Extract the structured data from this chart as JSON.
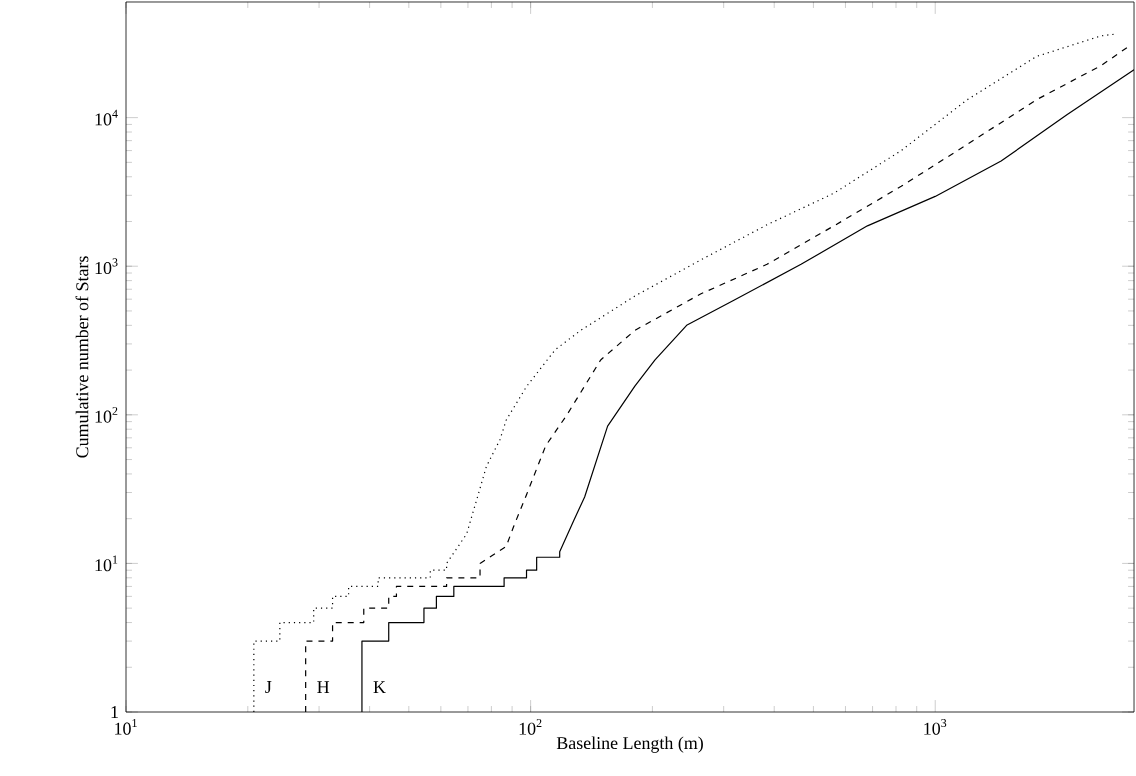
{
  "chart_data": {
    "type": "line",
    "xlabel": "Baseline Length (m)",
    "ylabel": "Cumulative number of Stars",
    "log": "xy",
    "grid": false,
    "marker": "none",
    "xlim": [
      10,
      3100
    ],
    "ylim": [
      1,
      60000
    ],
    "xticks": [
      {
        "value": 10,
        "label": "10$^{1}$"
      },
      {
        "value": 100,
        "label": "10$^{2}$"
      },
      {
        "value": 1000,
        "label": "10$^{3}$"
      }
    ],
    "yticks": [
      1,
      {
        "value": 10,
        "label": "10$^{1}$"
      },
      {
        "value": 100,
        "label": "10$^{2}$"
      },
      {
        "value": 1000,
        "label": "10$^{3}$"
      },
      {
        "value": 10000,
        "label": "10$^{4}$"
      }
    ],
    "series": [
      {
        "color": "#000000",
        "line_style": "dotted",
        "x": [
          20.7,
          20.7,
          24,
          24,
          29.1,
          29.1,
          32.4,
          32.4,
          35.5,
          35.5,
          42,
          42,
          56.5,
          56.5,
          62,
          62,
          69.5,
          77.8,
          84,
          87,
          97.7,
          115,
          133,
          181,
          263,
          384,
          562,
          824,
          1200,
          1780,
          2570,
          2790
        ],
        "values": [
          1,
          3,
          3,
          4,
          4,
          5,
          5,
          6,
          6,
          7,
          7,
          8,
          8,
          9,
          9,
          10,
          15.8,
          45,
          68,
          92,
          155,
          274,
          370,
          630,
          1100,
          1900,
          3100,
          6000,
          13200,
          25800,
          35500,
          36500
        ]
      },
      {
        "color": "#000000",
        "line_style": "dashed",
        "x": [
          27.8,
          27.8,
          32.4,
          32.4,
          38.7,
          38.7,
          44.6,
          44.6,
          46.6,
          46.6,
          62,
          62,
          75,
          75,
          87,
          91,
          97.7,
          109,
          123,
          149,
          181,
          263,
          384,
          562,
          824,
          1200,
          1780,
          2570,
          3000
        ],
        "values": [
          1,
          3,
          3,
          4,
          4,
          5,
          5,
          6,
          6,
          7,
          7,
          8,
          8,
          10,
          13,
          18,
          29,
          62,
          100,
          234,
          370,
          650,
          1030,
          1870,
          3450,
          6600,
          13200,
          22400,
          30000
        ]
      },
      {
        "color": "#000000",
        "line_style": "solid",
        "x": [
          38.3,
          38.3,
          44.6,
          44.6,
          54.5,
          54.5,
          58.5,
          58.5,
          64.6,
          64.6,
          86,
          86,
          97.7,
          97.7,
          103.5,
          103.5,
          118,
          118,
          128,
          136,
          155,
          181,
          203,
          243,
          318,
          466,
          680,
          1000,
          1455,
          2120,
          3100
        ],
        "values": [
          1,
          3,
          3,
          4,
          4,
          5,
          5,
          6,
          6,
          7,
          7,
          8,
          8,
          9,
          9,
          11,
          11,
          12,
          19.6,
          28,
          84,
          156,
          234,
          400,
          590,
          1030,
          1870,
          2950,
          5100,
          10500,
          21000
        ]
      }
    ],
    "annotations": [
      "J",
      "H",
      "K"
    ]
  }
}
